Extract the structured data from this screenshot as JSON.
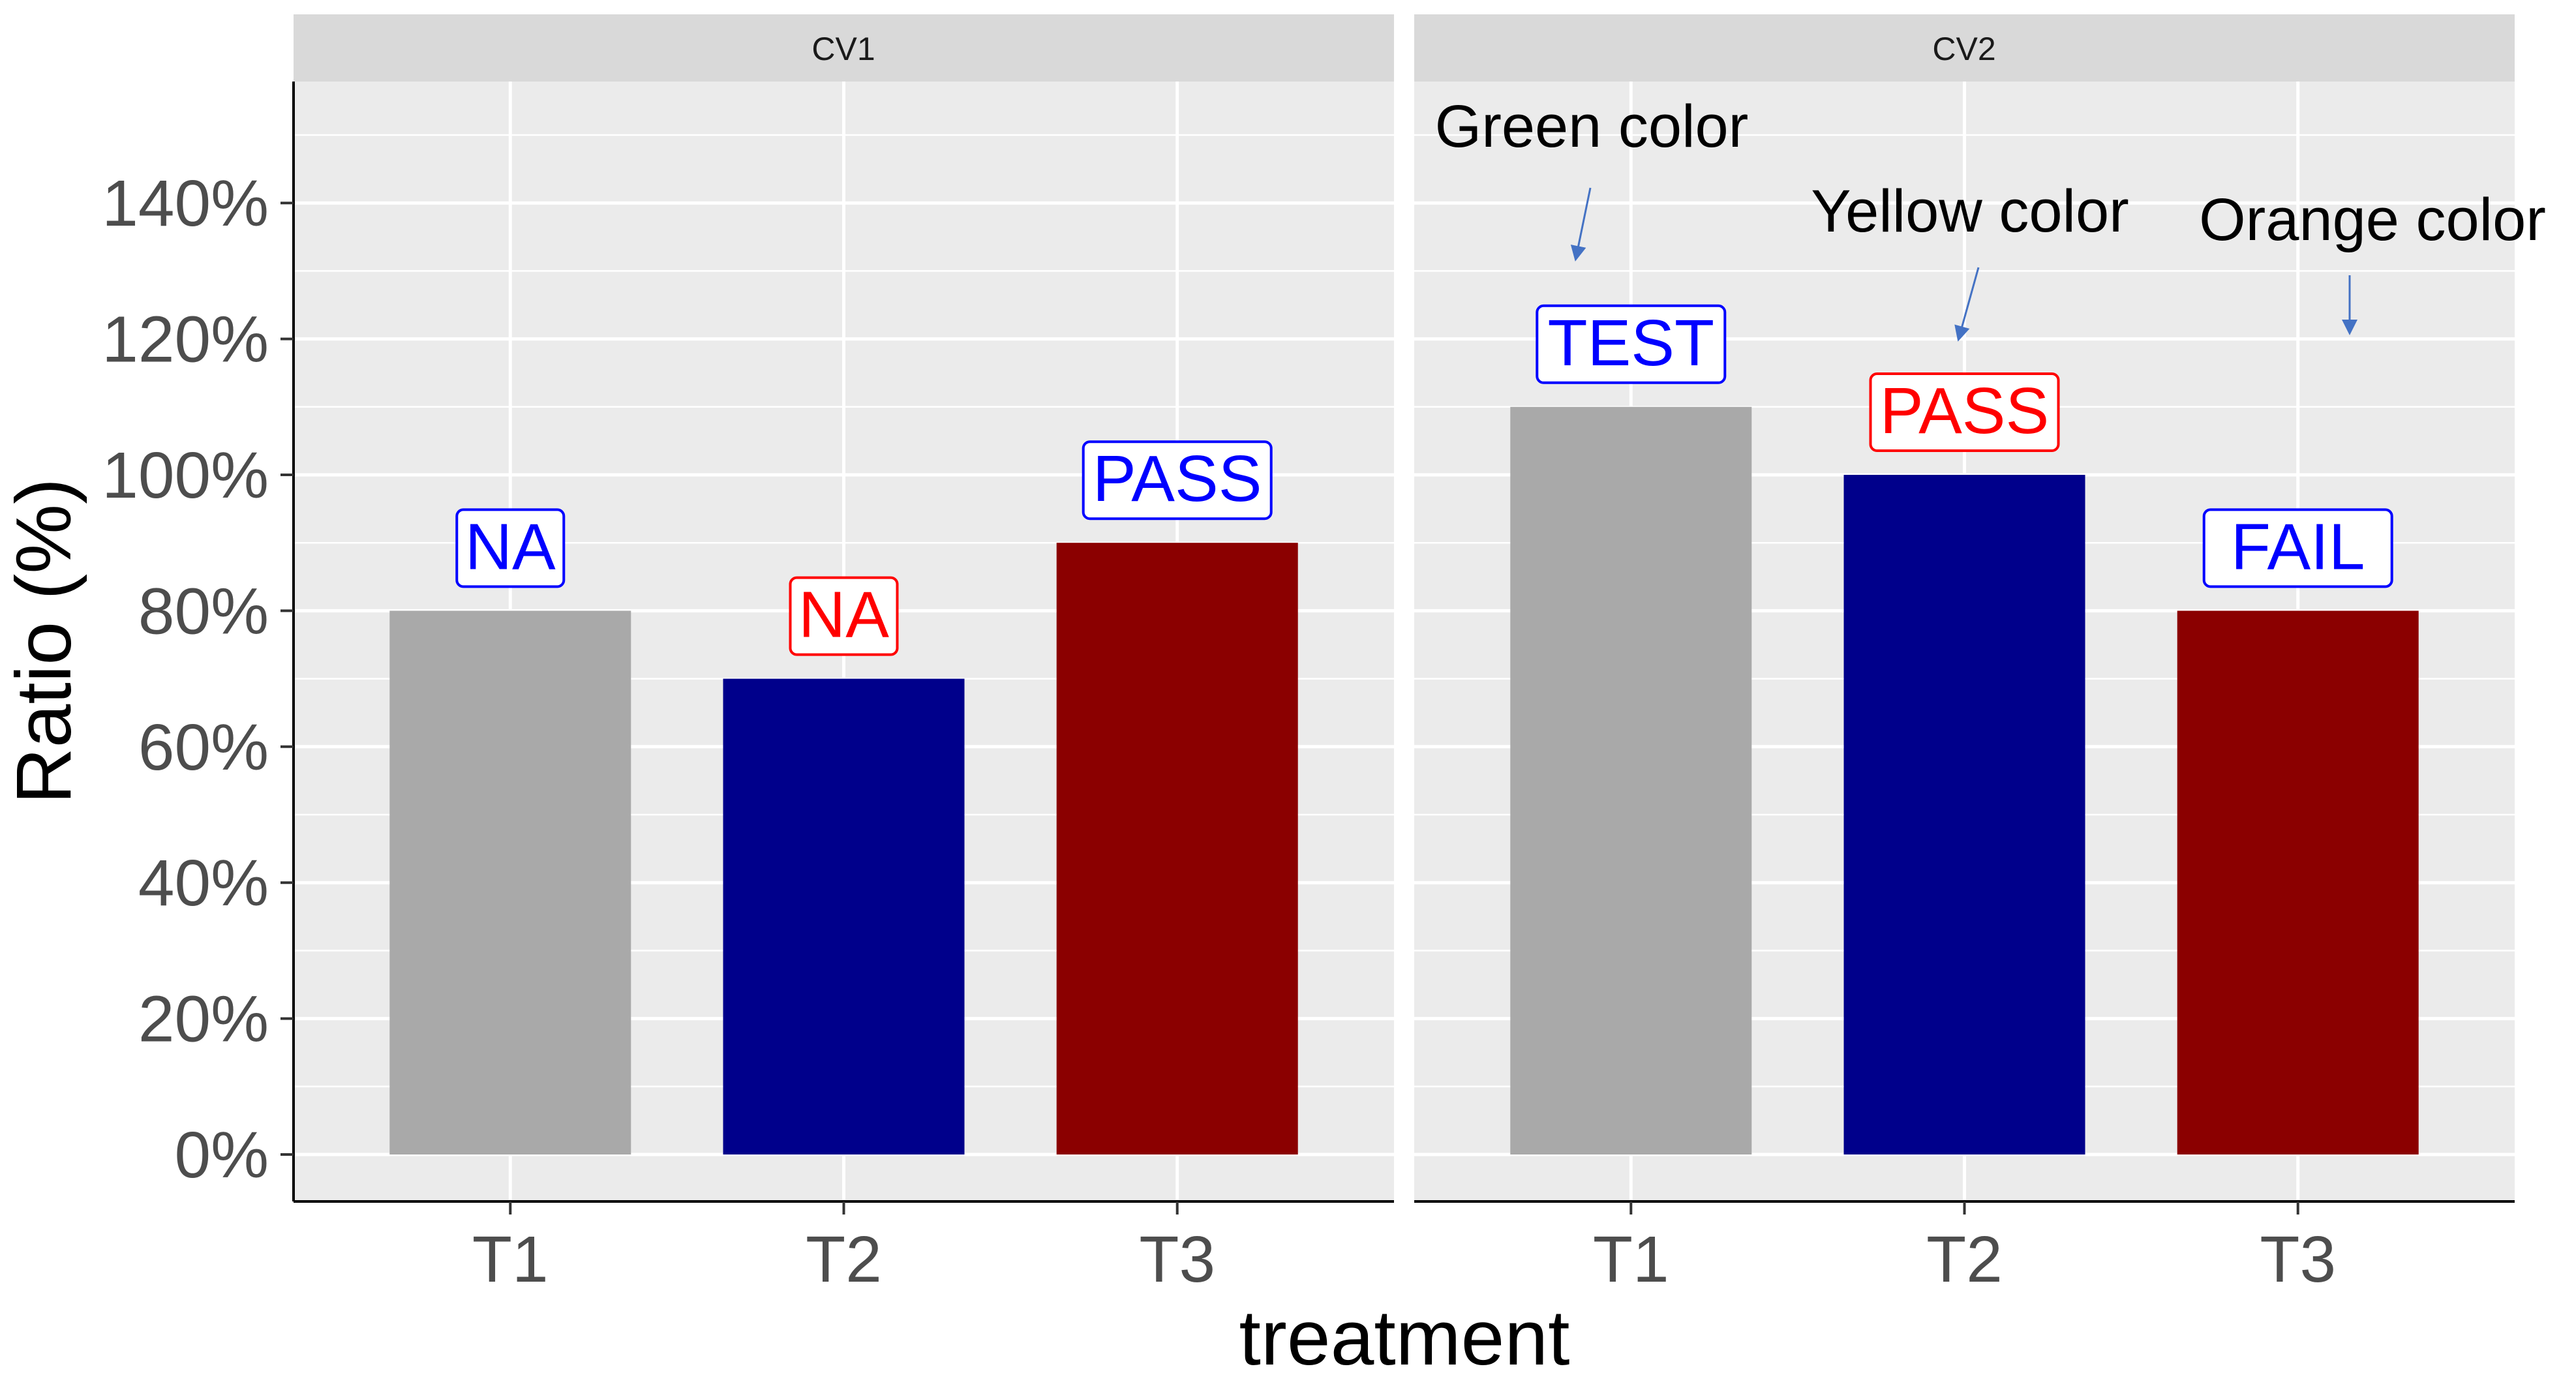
{
  "chart_data": {
    "type": "bar",
    "xlabel": "treatment",
    "ylabel": "Ratio (%)",
    "ylim": [
      0,
      150
    ],
    "y_ticks": [
      "0%",
      "20%",
      "40%",
      "60%",
      "80%",
      "100%",
      "120%",
      "140%"
    ],
    "grid": true,
    "categories": [
      "T1",
      "T2",
      "T3"
    ],
    "bar_colors": [
      "#A9A9A9",
      "#00008B",
      "#8B0000"
    ],
    "panels": [
      {
        "name": "CV1",
        "values": [
          80,
          70,
          90
        ],
        "labels": [
          {
            "text": "NA",
            "color": "#0000FF"
          },
          {
            "text": "NA",
            "color": "#FF0000"
          },
          {
            "text": "PASS",
            "color": "#0000FF"
          }
        ]
      },
      {
        "name": "CV2",
        "values": [
          110,
          100,
          80
        ],
        "labels": [
          {
            "text": "TEST",
            "color": "#0000FF"
          },
          {
            "text": "PASS",
            "color": "#FF0000"
          },
          {
            "text": "FAIL",
            "color": "#0000FF"
          }
        ]
      }
    ],
    "annotations": [
      {
        "text": "Green color",
        "target": "CV2 T1 label"
      },
      {
        "text": "Yellow color",
        "target": "CV2 T2 label"
      },
      {
        "text": "Orange color",
        "target": "CV2 T3 label"
      }
    ]
  }
}
